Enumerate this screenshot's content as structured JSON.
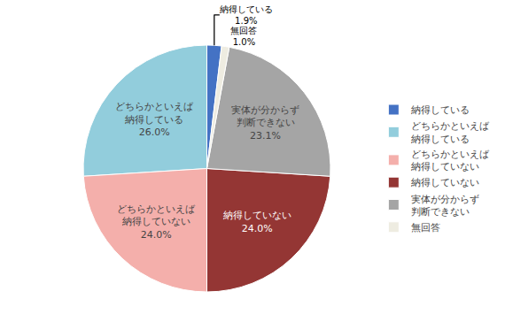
{
  "chart_data": {
    "type": "pie",
    "categories": [
      "納得している",
      "どちらかといえば\n納得している",
      "どちらかといえば\n納得していない",
      "納得していない",
      "実体が分からず\n判断できない",
      "無回答"
    ],
    "values": [
      1.9,
      26.0,
      24.0,
      24.0,
      23.1,
      1.0
    ],
    "value_labels": [
      "1.9%",
      "26.0%",
      "24.0%",
      "24.0%",
      "23.1%",
      "1.0%"
    ],
    "colors": [
      "#4472C4",
      "#92CDDC",
      "#F4AFAB",
      "#943634",
      "#A5A5A5",
      "#EEECE1"
    ],
    "data_labels": true,
    "legend": "right"
  }
}
